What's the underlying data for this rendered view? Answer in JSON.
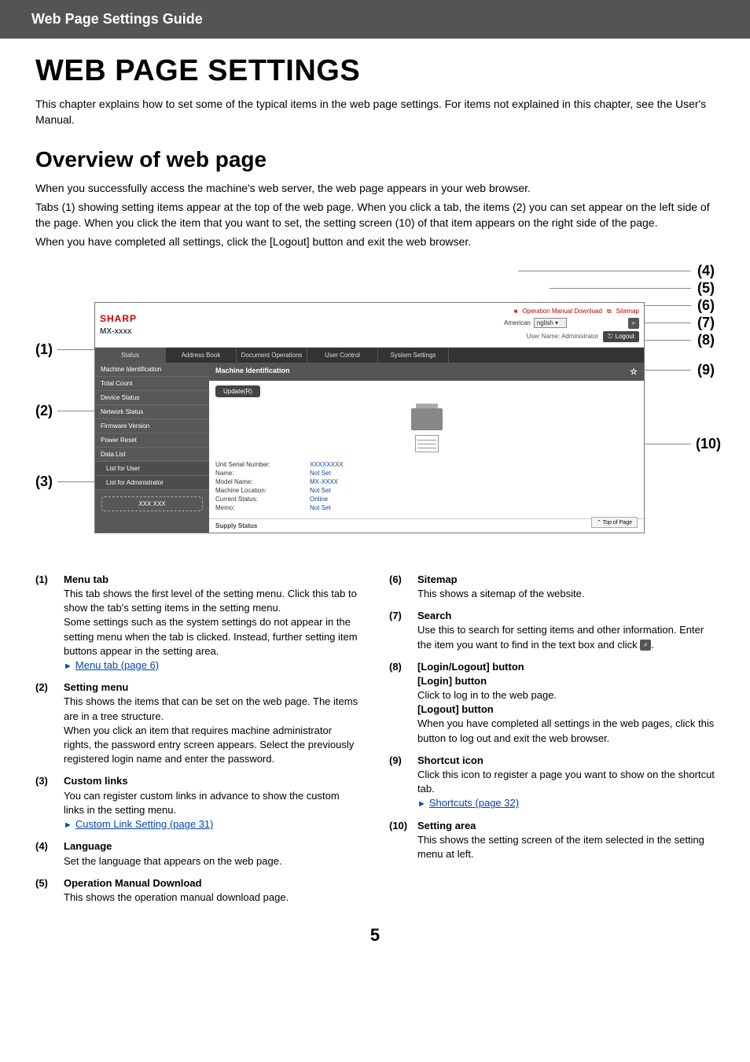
{
  "header": {
    "title": "Web Page Settings Guide"
  },
  "page": {
    "h1": "WEB PAGE SETTINGS",
    "intro": "This chapter explains how to set some of the typical items in the web page settings. For items not explained in this chapter, see the User's Manual.",
    "h2": "Overview of web page",
    "p1": "When you successfully access the machine's web server, the web page appears in your web browser.",
    "p2": "Tabs (1) showing setting items appear at the top of the web page. When you click a tab, the items (2) you can set appear on the left side of the page. When you click the item that you want to set, the setting screen (10) of that item appears on the right side of the page.",
    "p3": "When you have completed all settings, click the [Logout] button and exit the web browser."
  },
  "figure": {
    "logo": "SHARP",
    "model": "MX-xxxx",
    "toplinks": {
      "manual": "Operation Manual Download",
      "sitemap": "Sitemap"
    },
    "lang_label": "American",
    "lang_value": "nglish",
    "user_label": "User Name: Administrator",
    "logout": "Logout",
    "tabs": [
      "Status",
      "Address Book",
      "Document Operations",
      "User Control",
      "System Settings"
    ],
    "side": [
      {
        "t": "Machine Identification",
        "ind": false
      },
      {
        "t": "Total Count",
        "ind": false
      },
      {
        "t": "Device Status",
        "ind": false
      },
      {
        "t": "Network Status",
        "ind": false
      },
      {
        "t": "Firmware Version",
        "ind": false
      },
      {
        "t": "Power Reset",
        "ind": false
      },
      {
        "t": "Data List",
        "ind": false
      },
      {
        "t": "List for User",
        "ind": true
      },
      {
        "t": "List for Administrator",
        "ind": true
      }
    ],
    "custom": "XXX XXX",
    "panel_title": "Machine Identification",
    "update": "Update(R)",
    "info": [
      {
        "k": "Unit Serial Number:",
        "v": "XXXXXXXX"
      },
      {
        "k": "Name:",
        "v": "Not Set"
      },
      {
        "k": "Model Name:",
        "v": "MX-XXXX"
      },
      {
        "k": "Machine Location:",
        "v": "Not Set"
      },
      {
        "k": "Current Status:",
        "v": "Online"
      },
      {
        "k": "Memo:",
        "v": "Not Set"
      }
    ],
    "supply": "Supply Status",
    "topofpage": "Top of Page",
    "callouts": {
      "1": "(1)",
      "2": "(2)",
      "3": "(3)",
      "4": "(4)",
      "5": "(5)",
      "6": "(6)",
      "7": "(7)",
      "8": "(8)",
      "9": "(9)",
      "10": "(10)"
    }
  },
  "items": {
    "left": [
      {
        "n": "(1)",
        "t": "Menu tab",
        "b": "This tab shows the first level of the setting menu. Click this tab to show the tab's setting items in the setting menu.\nSome settings such as the system settings do not appear in the setting menu when the tab is clicked. Instead, further setting item buttons appear in the setting area.",
        "link": "Menu tab (page 6)"
      },
      {
        "n": "(2)",
        "t": "Setting menu",
        "b": "This shows the items that can be set on the web page. The items are in a tree structure.\nWhen you click an item that requires machine administrator rights, the password entry screen appears. Select the previously registered login name and enter the password."
      },
      {
        "n": "(3)",
        "t": "Custom links",
        "b": "You can register custom links in advance to show the custom links in the setting menu.",
        "link": "Custom Link Setting (page 31)"
      },
      {
        "n": "(4)",
        "t": "Language",
        "b": "Set the language that appears on the web page."
      },
      {
        "n": "(5)",
        "t": "Operation Manual Download",
        "b": "This shows the operation manual download page."
      }
    ],
    "right": [
      {
        "n": "(6)",
        "t": "Sitemap",
        "b": "This shows a sitemap of the website."
      },
      {
        "n": "(7)",
        "t": "Search",
        "b": "Use this to search for setting items and other information. Enter the item you want to find in the text box and click",
        "icon": true,
        "after": "."
      },
      {
        "n": "(8)",
        "t": "[Login/Logout] button",
        "sub": [
          {
            "st": "[Login] button",
            "sb": "Click to log in to the web page."
          },
          {
            "st": "[Logout] button",
            "sb": "When you have completed all settings in the web pages, click this button to log out and exit the web browser."
          }
        ]
      },
      {
        "n": "(9)",
        "t": "Shortcut icon",
        "b": "Click this icon to register a page you want to show on the shortcut tab.",
        "link": "Shortcuts (page 32)"
      },
      {
        "n": "(10)",
        "t": "Setting area",
        "b": "This shows the setting screen of the item selected in the setting menu at left."
      }
    ]
  },
  "footer": "5"
}
